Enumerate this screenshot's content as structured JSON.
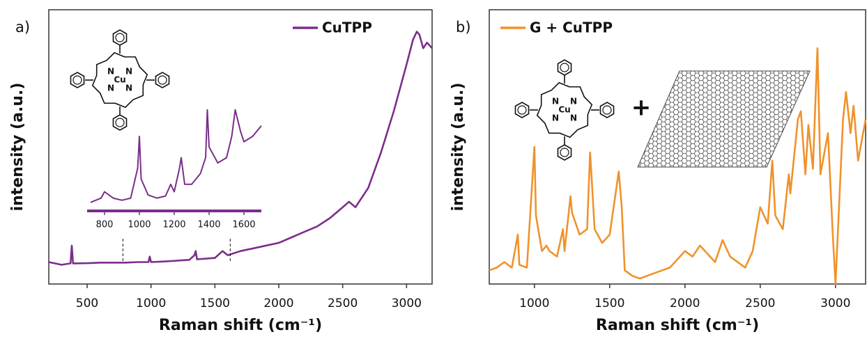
{
  "chart_data": [
    {
      "type": "line",
      "panel_label": "a)",
      "xlabel": "Raman shift (cm⁻¹)",
      "ylabel": "intensity (a.u.)",
      "x": [
        200,
        300,
        370,
        380,
        390,
        500,
        600,
        700,
        800,
        900,
        980,
        990,
        1000,
        1100,
        1200,
        1300,
        1340,
        1350,
        1360,
        1500,
        1560,
        1600,
        1700,
        1800,
        1900,
        2000,
        2100,
        2200,
        2300,
        2400,
        2500,
        2550,
        2600,
        2700,
        2800,
        2900,
        3000,
        3050,
        3080,
        3100,
        3130,
        3160,
        3200
      ],
      "series": [
        {
          "name": "CuTPP",
          "color": "#7b2d8b",
          "values": [
            8,
            7,
            7.5,
            14,
            7.5,
            7.6,
            7.8,
            7.8,
            7.8,
            8,
            8,
            10,
            8,
            8.2,
            8.5,
            8.8,
            10.5,
            12,
            9,
            9.5,
            12,
            10.5,
            12,
            13,
            14,
            15,
            17,
            19,
            21,
            24,
            28,
            30,
            28,
            35,
            48,
            63,
            80,
            89,
            92,
            91,
            86,
            88,
            86
          ]
        }
      ],
      "xlim": [
        200,
        3200
      ],
      "xticks": [
        500,
        1000,
        1500,
        2000,
        2500,
        3000
      ],
      "ylim": [
        0,
        100
      ],
      "legend": "upper right",
      "molecule_atoms": [
        "N",
        "N",
        "N",
        "N",
        "Cu"
      ]
    },
    {
      "type": "line",
      "x": [
        720,
        780,
        800,
        850,
        900,
        950,
        990,
        1000,
        1010,
        1050,
        1100,
        1150,
        1180,
        1200,
        1230,
        1240,
        1260,
        1300,
        1350,
        1380,
        1390,
        1400,
        1450,
        1500,
        1530,
        1550,
        1580,
        1600,
        1650,
        1700
      ],
      "series": [
        {
          "color": "#7b2d8b",
          "values": [
            8,
            12,
            18,
            12,
            10,
            12,
            40,
            70,
            30,
            15,
            12,
            14,
            25,
            18,
            40,
            50,
            25,
            25,
            35,
            50,
            95,
            60,
            45,
            50,
            70,
            95,
            75,
            65,
            70,
            80
          ]
        }
      ],
      "xlim": [
        700,
        1700
      ],
      "xticks": [
        800,
        1000,
        1200,
        1400,
        1600
      ],
      "ylim": [
        0,
        100
      ]
    },
    {
      "type": "line",
      "panel_label": "b)",
      "xlabel": "Raman shift (cm⁻¹)",
      "ylabel": "intensity (a.u.)",
      "x": [
        700,
        750,
        800,
        850,
        890,
        900,
        950,
        1000,
        1010,
        1050,
        1080,
        1100,
        1150,
        1190,
        1200,
        1240,
        1250,
        1300,
        1350,
        1370,
        1400,
        1450,
        1500,
        1560,
        1580,
        1600,
        1650,
        1700,
        1800,
        1900,
        2000,
        2050,
        2100,
        2200,
        2250,
        2300,
        2400,
        2450,
        2500,
        2550,
        2580,
        2600,
        2650,
        2690,
        2700,
        2750,
        2770,
        2800,
        2820,
        2850,
        2880,
        2900,
        2950,
        2980,
        3000,
        3050,
        3070,
        3100,
        3120,
        3150,
        3200
      ],
      "series": [
        {
          "name": "G + CuTPP",
          "color": "#f0922a",
          "values": [
            5,
            6,
            8,
            6,
            18,
            7,
            6,
            50,
            25,
            12,
            14,
            12,
            10,
            20,
            12,
            32,
            26,
            18,
            20,
            48,
            20,
            15,
            18,
            41,
            28,
            5,
            3,
            2,
            4,
            6,
            12,
            10,
            14,
            8,
            16,
            10,
            6,
            12,
            28,
            22,
            45,
            25,
            20,
            40,
            33,
            60,
            63,
            40,
            58,
            42,
            86,
            40,
            55,
            20,
            0,
            60,
            70,
            55,
            65,
            45,
            60
          ]
        }
      ],
      "xlim": [
        700,
        3200
      ],
      "xticks": [
        1000,
        1500,
        2000,
        2500,
        3000
      ],
      "ylim": [
        0,
        100
      ],
      "legend": "upper left",
      "molecule_atoms": [
        "N",
        "N",
        "N",
        "N",
        "Cu"
      ],
      "annotation": "+"
    }
  ]
}
